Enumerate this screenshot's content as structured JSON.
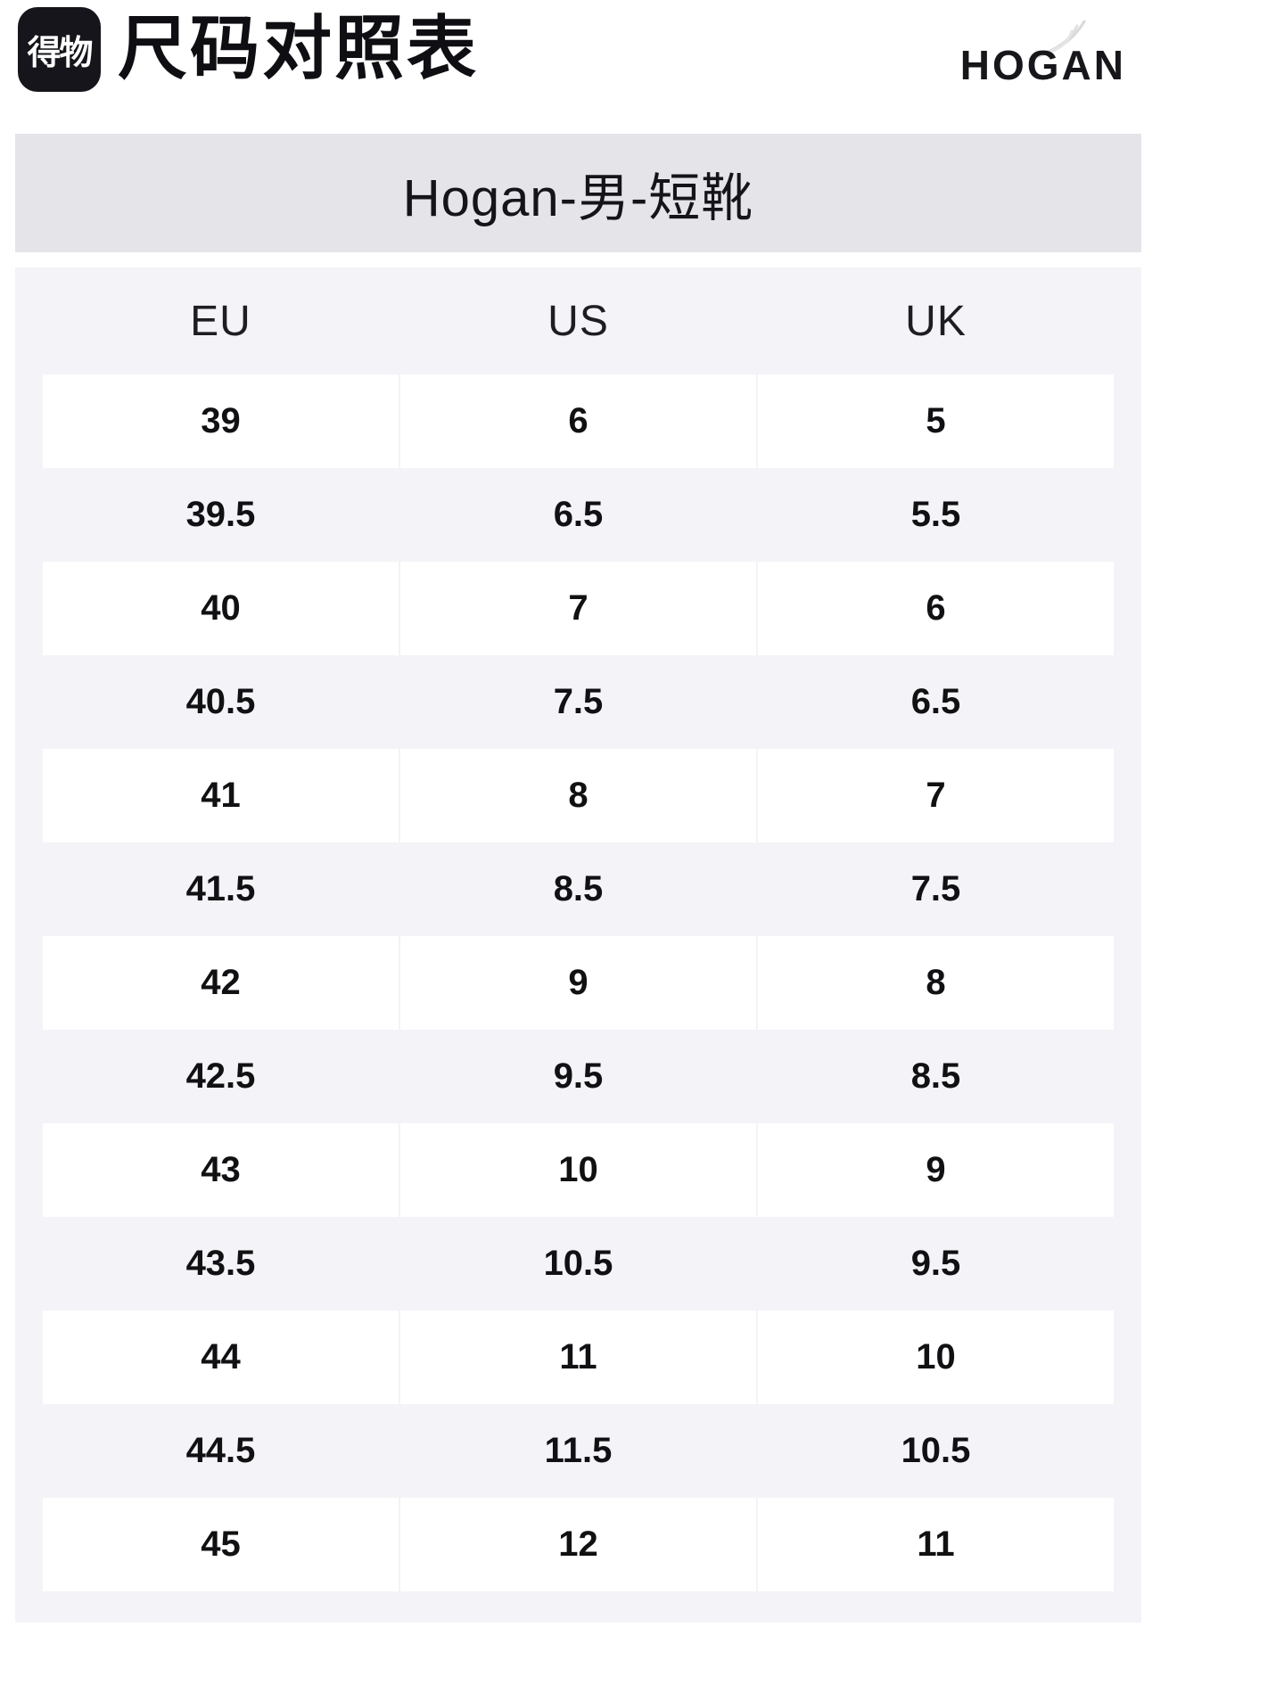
{
  "header": {
    "app_logo_text": "得物",
    "page_title": "尺码对照表",
    "brand_logo_text": "HOGAN"
  },
  "size_table": {
    "caption": "Hogan-男-短靴",
    "columns": [
      "EU",
      "US",
      "UK"
    ],
    "rows": [
      [
        "39",
        "6",
        "5"
      ],
      [
        "39.5",
        "6.5",
        "5.5"
      ],
      [
        "40",
        "7",
        "6"
      ],
      [
        "40.5",
        "7.5",
        "6.5"
      ],
      [
        "41",
        "8",
        "7"
      ],
      [
        "41.5",
        "8.5",
        "7.5"
      ],
      [
        "42",
        "9",
        "8"
      ],
      [
        "42.5",
        "9.5",
        "8.5"
      ],
      [
        "43",
        "10",
        "9"
      ],
      [
        "43.5",
        "10.5",
        "9.5"
      ],
      [
        "44",
        "11",
        "10"
      ],
      [
        "44.5",
        "11.5",
        "10.5"
      ],
      [
        "45",
        "12",
        "11"
      ]
    ]
  },
  "chart_data": {
    "type": "table",
    "title": "Hogan-男-短靴",
    "columns": [
      "EU",
      "US",
      "UK"
    ],
    "rows": [
      [
        39,
        6,
        5
      ],
      [
        39.5,
        6.5,
        5.5
      ],
      [
        40,
        7,
        6
      ],
      [
        40.5,
        7.5,
        6.5
      ],
      [
        41,
        8,
        7
      ],
      [
        41.5,
        8.5,
        7.5
      ],
      [
        42,
        9,
        8
      ],
      [
        42.5,
        9.5,
        8.5
      ],
      [
        43,
        10,
        9
      ],
      [
        43.5,
        10.5,
        9.5
      ],
      [
        44,
        11,
        10
      ],
      [
        44.5,
        11.5,
        10.5
      ],
      [
        45,
        12,
        11
      ]
    ]
  },
  "colors": {
    "caption_bar_bg": "#e5e4e9",
    "panel_bg": "#f4f3f7",
    "row_white_bg": "#ffffff",
    "app_logo_bg": "#15151b",
    "text": "#111114"
  }
}
